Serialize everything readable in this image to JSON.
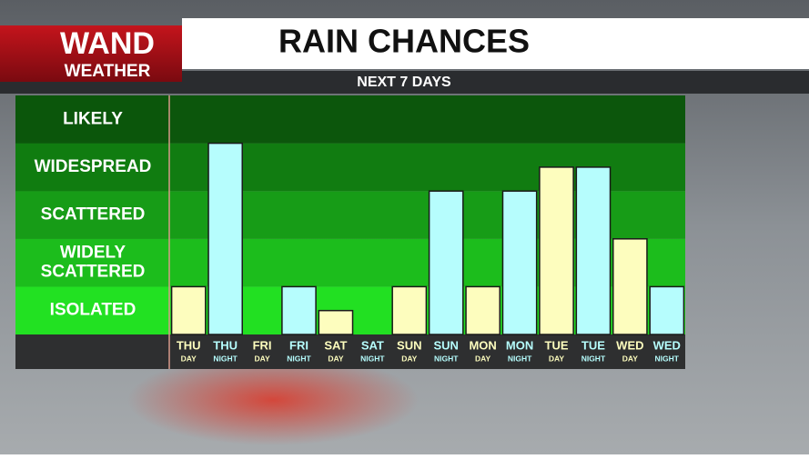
{
  "logo": {
    "name": "WAND",
    "tagline": "WEATHER"
  },
  "chart_data": {
    "type": "bar",
    "title": "RAIN CHANCES",
    "subtitle": "NEXT 7 DAYS",
    "categories": [
      "THU",
      "THU",
      "FRI",
      "FRI",
      "SAT",
      "SAT",
      "SUN",
      "SUN",
      "MON",
      "MON",
      "TUE",
      "TUE",
      "WED",
      "WED"
    ],
    "periods": [
      "DAY",
      "NIGHT",
      "DAY",
      "NIGHT",
      "DAY",
      "NIGHT",
      "DAY",
      "NIGHT",
      "DAY",
      "NIGHT",
      "DAY",
      "NIGHT",
      "DAY",
      "NIGHT"
    ],
    "values": [
      1,
      4,
      0,
      1,
      0.5,
      0,
      1,
      3,
      1,
      3,
      3.5,
      3.5,
      2,
      1
    ],
    "colors": [
      "#fdfdbe",
      "#b6fdfd",
      "#fdfdbe",
      "#b6fdfd",
      "#fdfdbe",
      "#b6fdfd",
      "#fdfdbe",
      "#b6fdfd",
      "#fdfdbe",
      "#b6fdfd",
      "#fdfdbe",
      "#b6fdfd",
      "#fdfdbe",
      "#b6fdfd"
    ],
    "ylim": [
      0,
      5
    ],
    "yticks": [
      {
        "value": 0.5,
        "label": "ISOLATED"
      },
      {
        "value": 1.5,
        "label": "WIDELY SCATTERED"
      },
      {
        "value": 2.5,
        "label": "SCATTERED"
      },
      {
        "value": 3.5,
        "label": "WIDESPREAD"
      },
      {
        "value": 4.5,
        "label": "LIKELY"
      }
    ],
    "band_colors": [
      "#22e022",
      "#1cbd1c",
      "#179c17",
      "#117c11",
      "#0c560c"
    ]
  }
}
